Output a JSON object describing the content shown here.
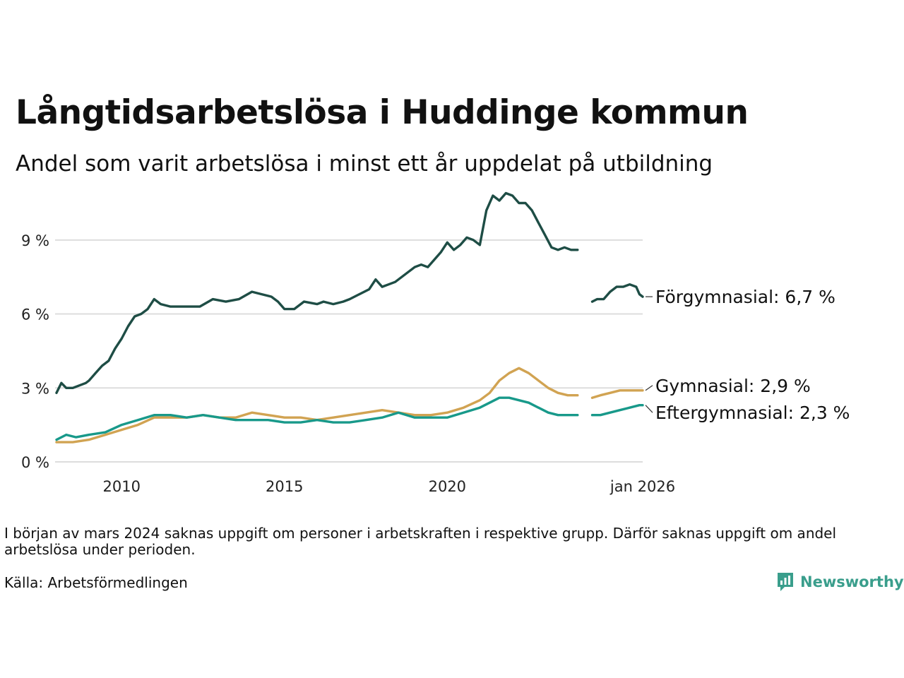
{
  "title": "Långtidsarbetslösa i Huddinge kommun",
  "subtitle": "Andel som varit arbetslösa i minst ett år uppdelat på utbildning",
  "footnote": "I början av mars 2024 saknas uppgift om personer i arbetskraften i respektive grupp. Därför saknas uppgift om andel arbetslösa under perioden.",
  "source": "Källa: Arbetsförmedlingen",
  "brand": "Newsworthy",
  "colors": {
    "forgymnasial": "#1e4d45",
    "gymnasial": "#d1a352",
    "eftergymnasial": "#18998a",
    "grid": "#dddddd",
    "brand": "#3a9e8c"
  },
  "chart_data": {
    "type": "line",
    "title": "Långtidsarbetslösa i Huddinge kommun",
    "xlabel": "",
    "ylabel": "",
    "xlim": [
      2008.0,
      2026.0
    ],
    "ylim": [
      0,
      11
    ],
    "y_ticks": [
      0,
      3,
      6,
      9
    ],
    "y_tick_labels": [
      "0 %",
      "3 %",
      "6 %",
      "9 %"
    ],
    "x_ticks": [
      2010,
      2015,
      2020,
      2026
    ],
    "x_tick_labels": [
      "2010",
      "2015",
      "2020",
      "jan 2026"
    ],
    "grid": true,
    "gap": [
      2024.15,
      2024.45
    ],
    "series": [
      {
        "name": "Förgymnasial",
        "end_label": "Förgymnasial: 6,7 %",
        "color": "#1e4d45",
        "x": [
          2008.0,
          2008.15,
          2008.3,
          2008.5,
          2008.7,
          2008.9,
          2009.0,
          2009.2,
          2009.4,
          2009.6,
          2009.8,
          2010.0,
          2010.2,
          2010.4,
          2010.6,
          2010.8,
          2011.0,
          2011.2,
          2011.5,
          2011.8,
          2012.0,
          2012.4,
          2012.8,
          2013.2,
          2013.6,
          2014.0,
          2014.3,
          2014.6,
          2014.8,
          2015.0,
          2015.3,
          2015.6,
          2016.0,
          2016.2,
          2016.5,
          2016.8,
          2017.0,
          2017.3,
          2017.6,
          2017.8,
          2018.0,
          2018.2,
          2018.4,
          2018.6,
          2018.8,
          2019.0,
          2019.2,
          2019.4,
          2019.6,
          2019.8,
          2020.0,
          2020.2,
          2020.4,
          2020.6,
          2020.8,
          2021.0,
          2021.2,
          2021.4,
          2021.6,
          2021.8,
          2022.0,
          2022.2,
          2022.4,
          2022.6,
          2022.8,
          2023.0,
          2023.2,
          2023.4,
          2023.6,
          2023.8,
          2024.0,
          2024.15,
          2024.45,
          2024.6,
          2024.8,
          2025.0,
          2025.2,
          2025.4,
          2025.6,
          2025.8,
          2025.9,
          2026.0
        ],
        "y": [
          2.8,
          3.2,
          3.0,
          3.0,
          3.1,
          3.2,
          3.3,
          3.6,
          3.9,
          4.1,
          4.6,
          5.0,
          5.5,
          5.9,
          6.0,
          6.2,
          6.6,
          6.4,
          6.3,
          6.3,
          6.3,
          6.3,
          6.6,
          6.5,
          6.6,
          6.9,
          6.8,
          6.7,
          6.5,
          6.2,
          6.2,
          6.5,
          6.4,
          6.5,
          6.4,
          6.5,
          6.6,
          6.8,
          7.0,
          7.4,
          7.1,
          7.2,
          7.3,
          7.5,
          7.7,
          7.9,
          8.0,
          7.9,
          8.2,
          8.5,
          8.9,
          8.6,
          8.8,
          9.1,
          9.0,
          8.8,
          10.2,
          10.8,
          10.6,
          10.9,
          10.8,
          10.5,
          10.5,
          10.2,
          9.7,
          9.2,
          8.7,
          8.6,
          8.7,
          8.6,
          8.6,
          null,
          6.5,
          6.6,
          6.6,
          6.9,
          7.1,
          7.1,
          7.2,
          7.1,
          6.8,
          6.7
        ]
      },
      {
        "name": "Gymnasial",
        "end_label": "Gymnasial: 2,9 %",
        "color": "#d1a352",
        "x": [
          2008.0,
          2008.5,
          2009.0,
          2009.5,
          2010.0,
          2010.5,
          2011.0,
          2011.5,
          2012.0,
          2012.5,
          2013.0,
          2013.5,
          2014.0,
          2014.5,
          2015.0,
          2015.5,
          2016.0,
          2016.5,
          2017.0,
          2017.5,
          2018.0,
          2018.5,
          2019.0,
          2019.5,
          2020.0,
          2020.5,
          2021.0,
          2021.3,
          2021.6,
          2021.9,
          2022.2,
          2022.5,
          2022.8,
          2023.1,
          2023.4,
          2023.7,
          2024.0,
          2024.15,
          2024.45,
          2024.7,
          2025.0,
          2025.3,
          2025.6,
          2025.9,
          2026.0
        ],
        "y": [
          0.8,
          0.8,
          0.9,
          1.1,
          1.3,
          1.5,
          1.8,
          1.8,
          1.8,
          1.9,
          1.8,
          1.8,
          2.0,
          1.9,
          1.8,
          1.8,
          1.7,
          1.8,
          1.9,
          2.0,
          2.1,
          2.0,
          1.9,
          1.9,
          2.0,
          2.2,
          2.5,
          2.8,
          3.3,
          3.6,
          3.8,
          3.6,
          3.3,
          3.0,
          2.8,
          2.7,
          2.7,
          null,
          2.6,
          2.7,
          2.8,
          2.9,
          2.9,
          2.9,
          2.9
        ]
      },
      {
        "name": "Eftergymnasial",
        "end_label": "Eftergymnasial: 2,3 %",
        "color": "#18998a",
        "x": [
          2008.0,
          2008.3,
          2008.6,
          2009.0,
          2009.5,
          2010.0,
          2010.5,
          2011.0,
          2011.5,
          2012.0,
          2012.5,
          2013.0,
          2013.5,
          2014.0,
          2014.5,
          2015.0,
          2015.5,
          2016.0,
          2016.5,
          2017.0,
          2017.5,
          2018.0,
          2018.5,
          2019.0,
          2019.5,
          2020.0,
          2020.5,
          2021.0,
          2021.3,
          2021.6,
          2021.9,
          2022.2,
          2022.5,
          2022.8,
          2023.1,
          2023.4,
          2023.7,
          2024.0,
          2024.15,
          2024.45,
          2024.7,
          2025.0,
          2025.3,
          2025.6,
          2025.9,
          2026.0
        ],
        "y": [
          0.9,
          1.1,
          1.0,
          1.1,
          1.2,
          1.5,
          1.7,
          1.9,
          1.9,
          1.8,
          1.9,
          1.8,
          1.7,
          1.7,
          1.7,
          1.6,
          1.6,
          1.7,
          1.6,
          1.6,
          1.7,
          1.8,
          2.0,
          1.8,
          1.8,
          1.8,
          2.0,
          2.2,
          2.4,
          2.6,
          2.6,
          2.5,
          2.4,
          2.2,
          2.0,
          1.9,
          1.9,
          1.9,
          null,
          1.9,
          1.9,
          2.0,
          2.1,
          2.2,
          2.3,
          2.3
        ]
      }
    ]
  }
}
